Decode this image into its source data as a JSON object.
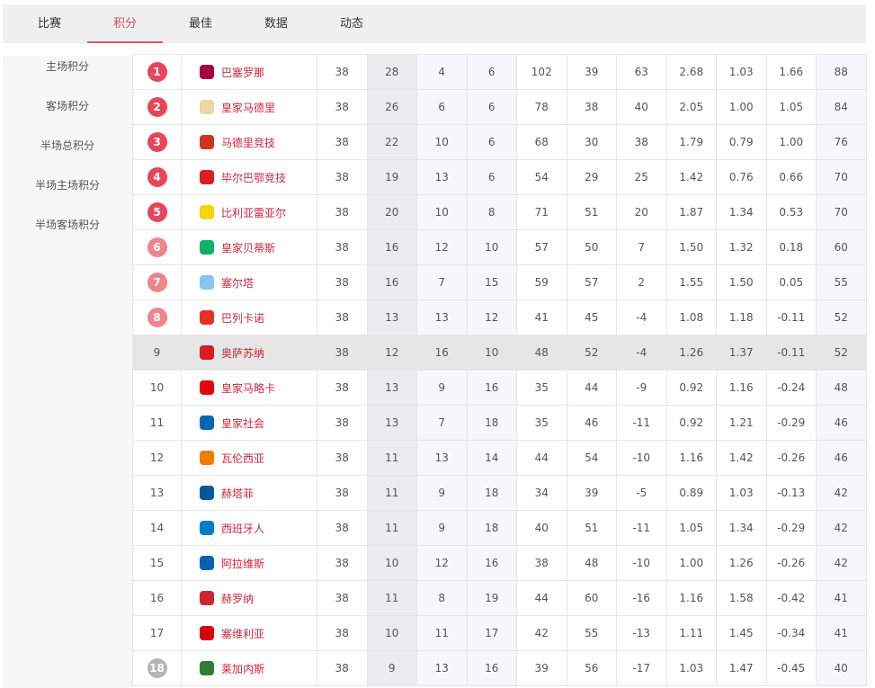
{
  "tabs": [
    "比赛",
    "积分",
    "最佳",
    "数据",
    "动态"
  ],
  "active_tab": 1,
  "sidebar": [
    "主场积分",
    "客场积分",
    "半场总积分",
    "半场主场积分",
    "半场客场积分"
  ],
  "colors": {
    "accent": "#d9475a",
    "badge_top": "#e5475a",
    "badge_mid": "#f0848e",
    "badge_relegation": "#b5b5b5",
    "highlight_row": "#e6e6e6"
  },
  "rows": [
    {
      "rank": "1",
      "team": "巴塞罗那",
      "crest": "#a50044",
      "v": [
        "38",
        "28",
        "4",
        "6",
        "102",
        "39",
        "63",
        "2.68",
        "1.03",
        "1.66",
        "88"
      ]
    },
    {
      "rank": "2",
      "team": "皇家马德里",
      "crest": "#e8d9a0",
      "v": [
        "38",
        "26",
        "6",
        "6",
        "78",
        "38",
        "40",
        "2.05",
        "1.00",
        "1.05",
        "84"
      ]
    },
    {
      "rank": "3",
      "team": "马德里竞技",
      "crest": "#cb3524",
      "v": [
        "38",
        "22",
        "10",
        "6",
        "68",
        "30",
        "38",
        "1.79",
        "0.79",
        "1.00",
        "76"
      ]
    },
    {
      "rank": "4",
      "team": "毕尔巴鄂竞技",
      "crest": "#d81f26",
      "v": [
        "38",
        "19",
        "13",
        "6",
        "54",
        "29",
        "25",
        "1.42",
        "0.76",
        "0.66",
        "70"
      ]
    },
    {
      "rank": "5",
      "team": "比利亚雷亚尔",
      "crest": "#f5d60a",
      "v": [
        "38",
        "20",
        "10",
        "8",
        "71",
        "51",
        "20",
        "1.87",
        "1.34",
        "0.53",
        "70"
      ]
    },
    {
      "rank": "6",
      "team": "皇家贝蒂斯",
      "crest": "#0bb363",
      "v": [
        "38",
        "16",
        "12",
        "10",
        "57",
        "50",
        "7",
        "1.50",
        "1.32",
        "0.18",
        "60"
      ]
    },
    {
      "rank": "7",
      "team": "塞尔塔",
      "crest": "#8ac3ee",
      "v": [
        "38",
        "16",
        "7",
        "15",
        "59",
        "57",
        "2",
        "1.55",
        "1.50",
        "0.05",
        "55"
      ]
    },
    {
      "rank": "8",
      "team": "巴列卡诺",
      "crest": "#e53027",
      "v": [
        "38",
        "13",
        "13",
        "12",
        "41",
        "45",
        "-4",
        "1.08",
        "1.18",
        "-0.11",
        "52"
      ]
    },
    {
      "rank": "9",
      "team": "奥萨苏纳",
      "crest": "#d91a21",
      "v": [
        "38",
        "12",
        "16",
        "10",
        "48",
        "52",
        "-4",
        "1.26",
        "1.37",
        "-0.11",
        "52"
      ]
    },
    {
      "rank": "10",
      "team": "皇家马略卡",
      "crest": "#e20613",
      "v": [
        "38",
        "13",
        "9",
        "16",
        "35",
        "44",
        "-9",
        "0.92",
        "1.16",
        "-0.24",
        "48"
      ]
    },
    {
      "rank": "11",
      "team": "皇家社会",
      "crest": "#0067b1",
      "v": [
        "38",
        "13",
        "7",
        "18",
        "35",
        "46",
        "-11",
        "0.92",
        "1.21",
        "-0.29",
        "46"
      ]
    },
    {
      "rank": "12",
      "team": "瓦伦西亚",
      "crest": "#ee7d00",
      "v": [
        "38",
        "11",
        "13",
        "14",
        "44",
        "54",
        "-10",
        "1.16",
        "1.42",
        "-0.26",
        "46"
      ]
    },
    {
      "rank": "13",
      "team": "赫塔菲",
      "crest": "#005999",
      "v": [
        "38",
        "11",
        "9",
        "18",
        "34",
        "39",
        "-5",
        "0.89",
        "1.03",
        "-0.13",
        "42"
      ]
    },
    {
      "rank": "14",
      "team": "西班牙人",
      "crest": "#007fc8",
      "v": [
        "38",
        "11",
        "9",
        "18",
        "40",
        "51",
        "-11",
        "1.05",
        "1.34",
        "-0.29",
        "42"
      ]
    },
    {
      "rank": "15",
      "team": "阿拉维斯",
      "crest": "#0761af",
      "v": [
        "38",
        "10",
        "12",
        "16",
        "38",
        "48",
        "-10",
        "1.00",
        "1.26",
        "-0.26",
        "42"
      ]
    },
    {
      "rank": "16",
      "team": "赫罗纳",
      "crest": "#cd2534",
      "v": [
        "38",
        "11",
        "8",
        "19",
        "44",
        "60",
        "-16",
        "1.16",
        "1.58",
        "-0.42",
        "41"
      ]
    },
    {
      "rank": "17",
      "team": "塞维利亚",
      "crest": "#d8000f",
      "v": [
        "38",
        "10",
        "11",
        "17",
        "42",
        "55",
        "-13",
        "1.11",
        "1.45",
        "-0.34",
        "41"
      ]
    },
    {
      "rank": "18",
      "team": "莱加内斯",
      "crest": "#2e7d32",
      "v": [
        "38",
        "9",
        "13",
        "16",
        "39",
        "56",
        "-17",
        "1.03",
        "1.47",
        "-0.45",
        "40"
      ]
    }
  ]
}
